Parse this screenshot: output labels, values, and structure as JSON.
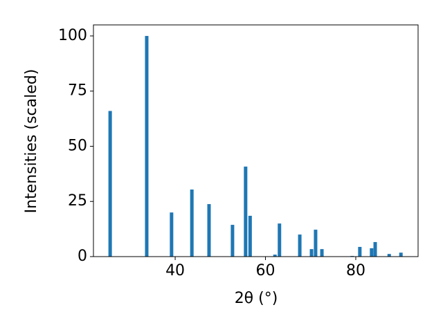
{
  "chart_data": {
    "type": "bar",
    "xlabel": "2θ (°)",
    "ylabel": "Intensities (scaled)",
    "x": [
      25.6,
      33.7,
      39.2,
      43.7,
      47.5,
      52.7,
      55.6,
      56.6,
      62.1,
      63.1,
      67.6,
      70.2,
      71.1,
      72.5,
      79.2,
      80.9,
      83.5,
      84.3,
      87.4,
      90.0
    ],
    "values": [
      66,
      100,
      20,
      30.4,
      23.8,
      14.4,
      40.8,
      18.5,
      0.9,
      15,
      10,
      3.4,
      12.2,
      3.4,
      0.3,
      4.4,
      3.8,
      6.6,
      1.2,
      1.8
    ],
    "color": "#1f77b4",
    "xlim": [
      21.9,
      93.8
    ],
    "xticks": [
      40,
      60,
      80
    ],
    "ylim": [
      0,
      105
    ],
    "yticks": [
      0,
      25,
      50,
      75,
      100
    ]
  }
}
